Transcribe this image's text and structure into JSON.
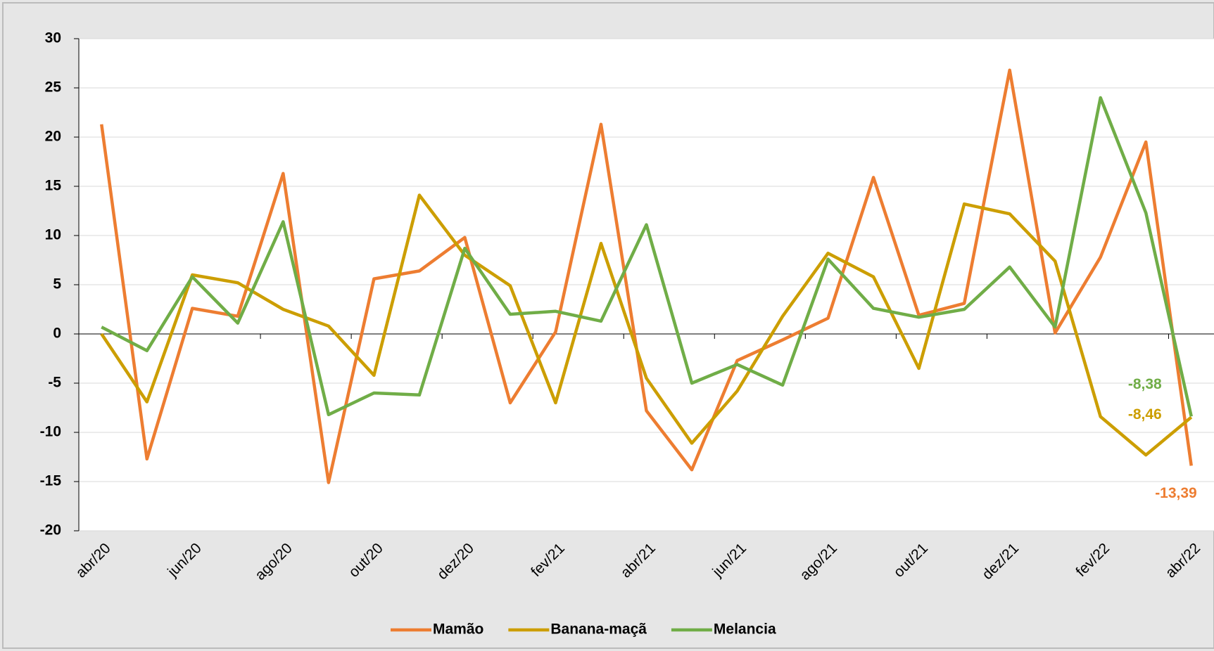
{
  "chart_data": {
    "type": "line",
    "categories": [
      "abr/20",
      null,
      "jun/20",
      null,
      "ago/20",
      null,
      "out/20",
      null,
      "dez/20",
      null,
      "fev/21",
      null,
      "abr/21",
      null,
      "jun/21",
      null,
      "ago/21",
      null,
      "out/21",
      null,
      "dez/21",
      null,
      "fev/22",
      null,
      "abr/22"
    ],
    "series": [
      {
        "name": "Mamão",
        "color": "#ED7D31",
        "values": [
          21.3,
          -12.7,
          2.6,
          1.8,
          16.3,
          -15.1,
          5.6,
          6.4,
          9.8,
          -7.0,
          0.2,
          21.3,
          -7.8,
          -13.8,
          -2.7,
          -0.6,
          1.6,
          15.9,
          1.9,
          3.1,
          26.8,
          0.1,
          7.8,
          19.5,
          -13.39
        ],
        "value_labels": [
          null,
          null,
          null,
          null,
          null,
          null,
          null,
          null,
          null,
          null,
          null,
          null,
          null,
          null,
          null,
          null,
          null,
          null,
          null,
          null,
          null,
          null,
          null,
          null,
          "-13,39"
        ]
      },
      {
        "name": "Banana-maçã",
        "color": "#CC9E00",
        "values": [
          0.0,
          -6.9,
          6.0,
          5.2,
          2.5,
          0.8,
          -4.2,
          14.1,
          8.0,
          4.9,
          -7.0,
          9.2,
          -4.5,
          -11.1,
          -5.8,
          1.8,
          8.2,
          5.8,
          -3.5,
          13.2,
          12.2,
          7.4,
          -8.4,
          -12.3,
          -8.46
        ],
        "value_labels": [
          null,
          null,
          null,
          null,
          null,
          null,
          null,
          null,
          null,
          null,
          null,
          null,
          null,
          null,
          null,
          null,
          null,
          null,
          null,
          null,
          null,
          null,
          null,
          null,
          "-8,46"
        ]
      },
      {
        "name": "Melancia",
        "color": "#70AD47",
        "values": [
          0.7,
          -1.7,
          5.8,
          1.1,
          11.4,
          -8.2,
          -6.0,
          -6.2,
          8.7,
          2.0,
          2.3,
          1.3,
          11.1,
          -5.0,
          -3.1,
          -5.2,
          7.6,
          2.6,
          1.7,
          2.5,
          6.8,
          0.7,
          24.0,
          12.3,
          -8.38
        ],
        "value_labels": [
          null,
          null,
          null,
          null,
          null,
          null,
          null,
          null,
          null,
          null,
          null,
          null,
          null,
          null,
          null,
          null,
          null,
          null,
          null,
          null,
          null,
          null,
          null,
          null,
          "-8,38"
        ]
      }
    ],
    "ylim": [
      -20,
      30
    ],
    "yticks": [
      -20,
      -15,
      -10,
      -5,
      0,
      5,
      10,
      15,
      20,
      25,
      30
    ],
    "grid": true,
    "legend": "bottom"
  }
}
